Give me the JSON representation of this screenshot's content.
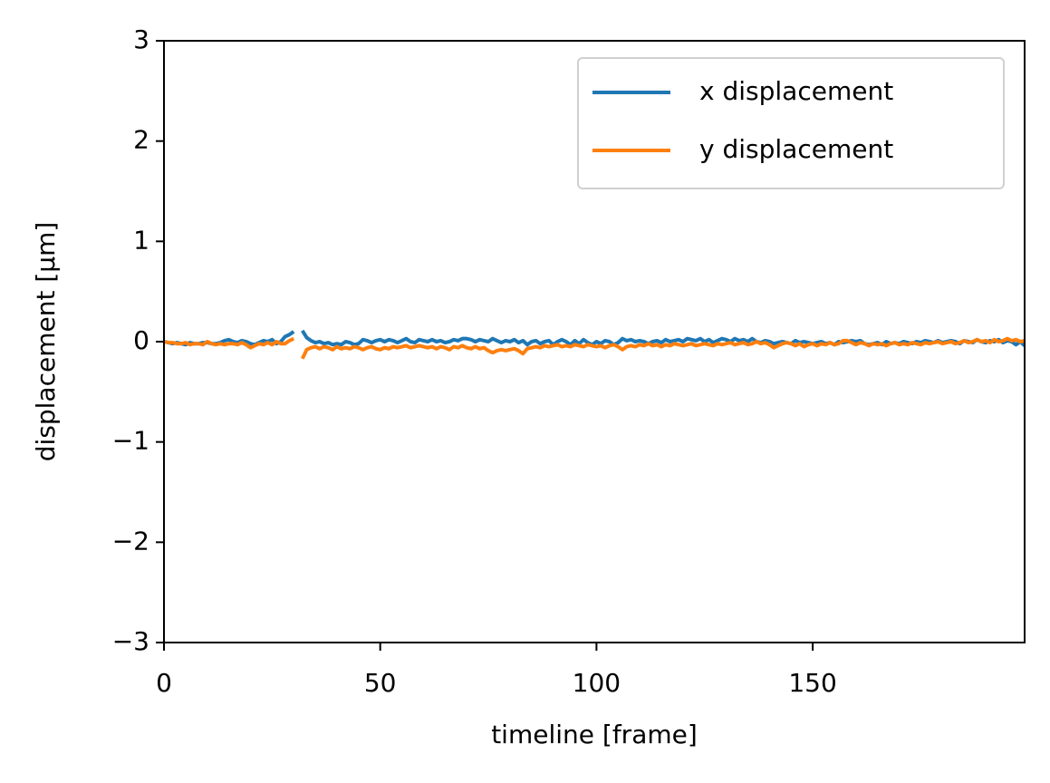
{
  "chart_data": {
    "type": "line",
    "xlabel": "timeline [frame]",
    "ylabel": "displacement [μm]",
    "xlim": [
      0,
      199
    ],
    "ylim": [
      -3,
      3
    ],
    "xticks": [
      0,
      50,
      100,
      150
    ],
    "yticks": [
      {
        "value": -3,
        "label": "−3"
      },
      {
        "value": -2,
        "label": "−2"
      },
      {
        "value": -1,
        "label": "−1"
      },
      0,
      1,
      2,
      3
    ],
    "legend": "upper right",
    "x": [
      0,
      1,
      2,
      3,
      4,
      5,
      6,
      7,
      8,
      9,
      10,
      11,
      12,
      13,
      14,
      15,
      16,
      17,
      18,
      19,
      20,
      21,
      22,
      23,
      24,
      25,
      26,
      27,
      28,
      29,
      30,
      31,
      32,
      33,
      34,
      35,
      36,
      37,
      38,
      39,
      40,
      41,
      42,
      43,
      44,
      45,
      46,
      47,
      48,
      49,
      50,
      51,
      52,
      53,
      54,
      55,
      56,
      57,
      58,
      59,
      60,
      61,
      62,
      63,
      64,
      65,
      66,
      67,
      68,
      69,
      70,
      71,
      72,
      73,
      74,
      75,
      76,
      77,
      78,
      79,
      80,
      81,
      82,
      83,
      84,
      85,
      86,
      87,
      88,
      89,
      90,
      91,
      92,
      93,
      94,
      95,
      96,
      97,
      98,
      99,
      100,
      101,
      102,
      103,
      104,
      105,
      106,
      107,
      108,
      109,
      110,
      111,
      112,
      113,
      114,
      115,
      116,
      117,
      118,
      119,
      120,
      121,
      122,
      123,
      124,
      125,
      126,
      127,
      128,
      129,
      130,
      131,
      132,
      133,
      134,
      135,
      136,
      137,
      138,
      139,
      140,
      141,
      142,
      143,
      144,
      145,
      146,
      147,
      148,
      149,
      150,
      151,
      152,
      153,
      154,
      155,
      156,
      157,
      158,
      159,
      160,
      161,
      162,
      163,
      164,
      165,
      166,
      167,
      168,
      169,
      170,
      171,
      172,
      173,
      174,
      175,
      176,
      177,
      178,
      179,
      180,
      181,
      182,
      183,
      184,
      185,
      186,
      187,
      188,
      189,
      190,
      191,
      192,
      193,
      194,
      195,
      196,
      197,
      198,
      199
    ],
    "series": [
      {
        "name": "x displacement",
        "color": "#1f77b4",
        "values": [
          0,
          -0.01,
          -0.02,
          -0.01,
          -0.02,
          -0.03,
          -0.01,
          -0.02,
          -0.02,
          -0.01,
          -0.01,
          -0.02,
          -0.02,
          -0.01,
          0.01,
          0.02,
          0,
          -0.01,
          0.01,
          0,
          -0.02,
          -0.03,
          -0.01,
          0.01,
          0,
          0.02,
          -0.02,
          0,
          0.05,
          0.07,
          0.1,
          null,
          0.11,
          0.04,
          0.01,
          -0.01,
          0,
          -0.02,
          -0.01,
          -0.03,
          -0.02,
          -0.03,
          0,
          -0.01,
          -0.03,
          -0.02,
          0.02,
          0.01,
          -0.01,
          0.01,
          0.02,
          0,
          0.02,
          0.01,
          -0.01,
          0.01,
          0.03,
          0,
          -0.01,
          0.02,
          0.01,
          0,
          0.02,
          0,
          0.01,
          -0.01,
          0,
          0.02,
          0.01,
          0.03,
          0.03,
          0.02,
          0,
          0.02,
          0.01,
          0,
          0.03,
          0.01,
          -0.01,
          0.01,
          0,
          0.02,
          -0.01,
          0.01,
          -0.03,
          0,
          0.01,
          -0.02,
          0,
          0.01,
          -0.03,
          0,
          0.02,
          0,
          -0.03,
          0.01,
          -0.02,
          0.02,
          -0.01,
          -0.03,
          0,
          -0.02,
          0.01,
          0,
          -0.03,
          -0.01,
          0.03,
          0.01,
          0.02,
          0,
          0.01,
          0,
          -0.02,
          0,
          0.01,
          -0.01,
          0.02,
          0,
          0.01,
          0.02,
          0,
          0.03,
          0.02,
          0.01,
          0.03,
          0,
          0.02,
          -0.01,
          0.01,
          0.03,
          0.02,
          0,
          0.03,
          0.01,
          0.02,
          0,
          0.03,
          0,
          -0.01,
          0.01,
          0,
          -0.02,
          -0.01,
          0,
          -0.01,
          -0.02,
          0.01,
          -0.01,
          0,
          -0.01,
          -0.02,
          -0.01,
          0,
          -0.02,
          -0.01,
          -0.03,
          0,
          -0.01,
          0,
          0.01,
          0,
          0.01,
          -0.02,
          -0.03,
          -0.02,
          -0.01,
          -0.03,
          0,
          -0.02,
          -0.01,
          -0.02,
          0,
          -0.01,
          -0.02,
          0,
          -0.01,
          0.01,
          0,
          -0.01,
          0.01,
          -0.01,
          0,
          0.01,
          0,
          -0.02,
          0.01,
          0,
          -0.01,
          0.02,
          0,
          -0.01,
          0.01,
          0,
          0.02,
          -0.01,
          0.01,
          0,
          -0.03,
          0,
          -0.04
        ]
      },
      {
        "name": "y displacement",
        "color": "#ff7f0e",
        "values": [
          0,
          -0.01,
          -0.01,
          -0.02,
          -0.02,
          -0.01,
          -0.03,
          -0.02,
          -0.02,
          -0.03,
          0,
          -0.02,
          -0.03,
          -0.02,
          -0.03,
          -0.02,
          -0.02,
          -0.03,
          -0.01,
          -0.03,
          -0.06,
          -0.04,
          -0.02,
          -0.03,
          -0.01,
          -0.03,
          0,
          -0.02,
          -0.02,
          0.01,
          0.03,
          null,
          -0.17,
          -0.08,
          -0.06,
          -0.05,
          -0.07,
          -0.05,
          -0.06,
          -0.08,
          -0.05,
          -0.07,
          -0.06,
          -0.07,
          -0.05,
          -0.06,
          -0.08,
          -0.06,
          -0.05,
          -0.07,
          -0.08,
          -0.06,
          -0.07,
          -0.05,
          -0.06,
          -0.05,
          -0.04,
          -0.06,
          -0.05,
          -0.04,
          -0.05,
          -0.06,
          -0.05,
          -0.07,
          -0.05,
          -0.06,
          -0.08,
          -0.05,
          -0.06,
          -0.04,
          -0.06,
          -0.07,
          -0.05,
          -0.07,
          -0.06,
          -0.09,
          -0.11,
          -0.09,
          -0.08,
          -0.09,
          -0.08,
          -0.07,
          -0.09,
          -0.12,
          -0.07,
          -0.06,
          -0.05,
          -0.06,
          -0.04,
          -0.05,
          -0.04,
          -0.03,
          -0.05,
          -0.04,
          -0.05,
          -0.03,
          -0.04,
          -0.05,
          -0.03,
          -0.04,
          -0.05,
          -0.04,
          -0.06,
          -0.04,
          -0.03,
          -0.05,
          -0.08,
          -0.05,
          -0.04,
          -0.05,
          -0.03,
          -0.04,
          -0.02,
          -0.04,
          -0.03,
          -0.05,
          -0.03,
          -0.04,
          -0.02,
          -0.03,
          -0.04,
          -0.03,
          -0.02,
          -0.04,
          -0.03,
          -0.02,
          -0.03,
          -0.04,
          -0.02,
          -0.03,
          -0.02,
          -0.01,
          -0.03,
          -0.02,
          -0.01,
          -0.03,
          -0.02,
          0,
          -0.02,
          -0.01,
          -0.03,
          -0.06,
          -0.04,
          -0.02,
          -0.01,
          -0.02,
          -0.04,
          -0.02,
          -0.05,
          -0.03,
          -0.02,
          -0.04,
          -0.02,
          -0.03,
          -0.01,
          -0.03,
          -0.02,
          0.01,
          0.01,
          -0.01,
          -0.03,
          -0.01,
          -0.02,
          -0.04,
          -0.02,
          -0.03,
          -0.02,
          -0.04,
          -0.02,
          -0.01,
          -0.03,
          -0.02,
          -0.03,
          -0.01,
          -0.02,
          -0.03,
          -0.01,
          -0.02,
          -0.01,
          0,
          -0.02,
          -0.01,
          0,
          -0.02,
          -0.01,
          0.01,
          -0.01,
          0,
          0.02,
          0,
          0.01,
          -0.01,
          0.02,
          0,
          0.01,
          0.03,
          0.01,
          0.02,
          0,
          0.01
        ]
      }
    ]
  }
}
